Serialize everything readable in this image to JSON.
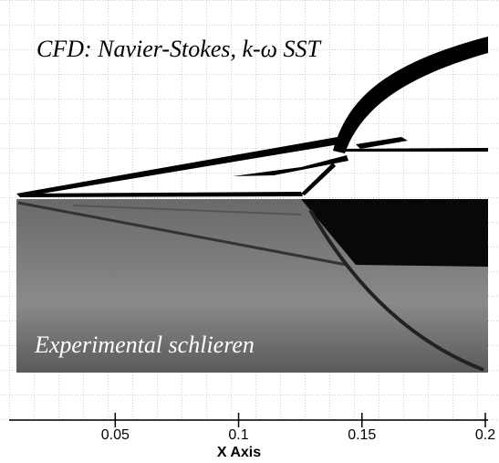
{
  "figure": {
    "cfd_label": "CFD: Navier-Stokes, k-ω SST",
    "experiment_label": "Experimental schlieren",
    "x_axis": {
      "title": "X Axis",
      "xlim": [
        0.007,
        0.2
      ],
      "xticks": [
        0.05,
        0.1,
        0.15,
        0.2
      ]
    }
  }
}
